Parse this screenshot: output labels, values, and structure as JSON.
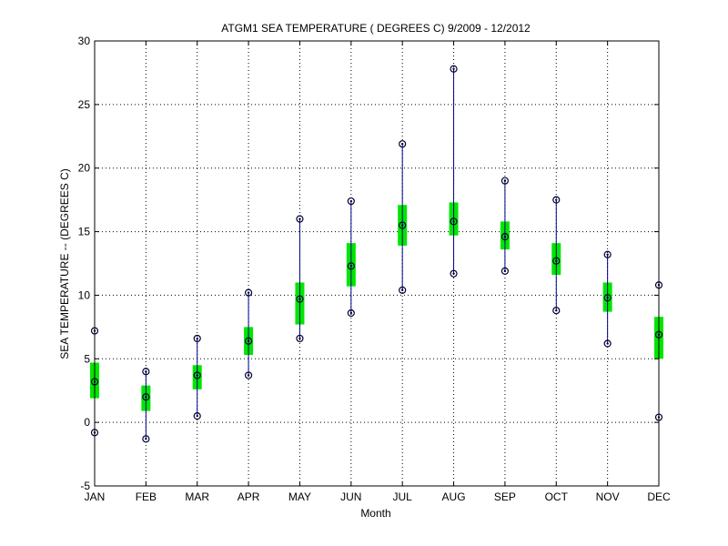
{
  "chart_data": {
    "type": "box",
    "title": "ATGM1  SEA TEMPERATURE ( DEGREES C) 9/2009 - 12/2012",
    "xlabel": "Month",
    "ylabel": "SEA TEMPERATURE -- (DEGREES C)",
    "ylim": [
      -5,
      30
    ],
    "yticks": [
      -5,
      0,
      5,
      10,
      15,
      20,
      25,
      30
    ],
    "grid": true,
    "categories": [
      "JAN",
      "FEB",
      "MAR",
      "APR",
      "MAY",
      "JUN",
      "JUL",
      "AUG",
      "SEP",
      "OCT",
      "NOV",
      "DEC"
    ],
    "min": [
      -0.8,
      -1.3,
      0.5,
      3.7,
      6.6,
      8.6,
      10.4,
      11.7,
      11.9,
      8.8,
      6.2,
      0.4
    ],
    "q1": [
      1.9,
      0.9,
      2.6,
      5.3,
      7.7,
      10.7,
      13.9,
      14.7,
      13.6,
      11.6,
      8.7,
      5.0
    ],
    "median": [
      3.2,
      2.0,
      3.7,
      6.4,
      9.7,
      12.3,
      15.5,
      15.8,
      14.6,
      12.7,
      9.8,
      6.9
    ],
    "q3": [
      4.7,
      2.9,
      4.5,
      7.5,
      11.0,
      14.1,
      17.1,
      17.3,
      15.8,
      14.1,
      11.0,
      8.3
    ],
    "max": [
      7.2,
      4.0,
      6.6,
      10.2,
      16.0,
      17.4,
      21.9,
      27.8,
      19.0,
      17.5,
      13.2,
      10.8
    ],
    "colors": {
      "box": "#00e600",
      "whisker": "#00008b",
      "marker": "#000033",
      "grid": "#000000",
      "axis": "#000000"
    }
  }
}
